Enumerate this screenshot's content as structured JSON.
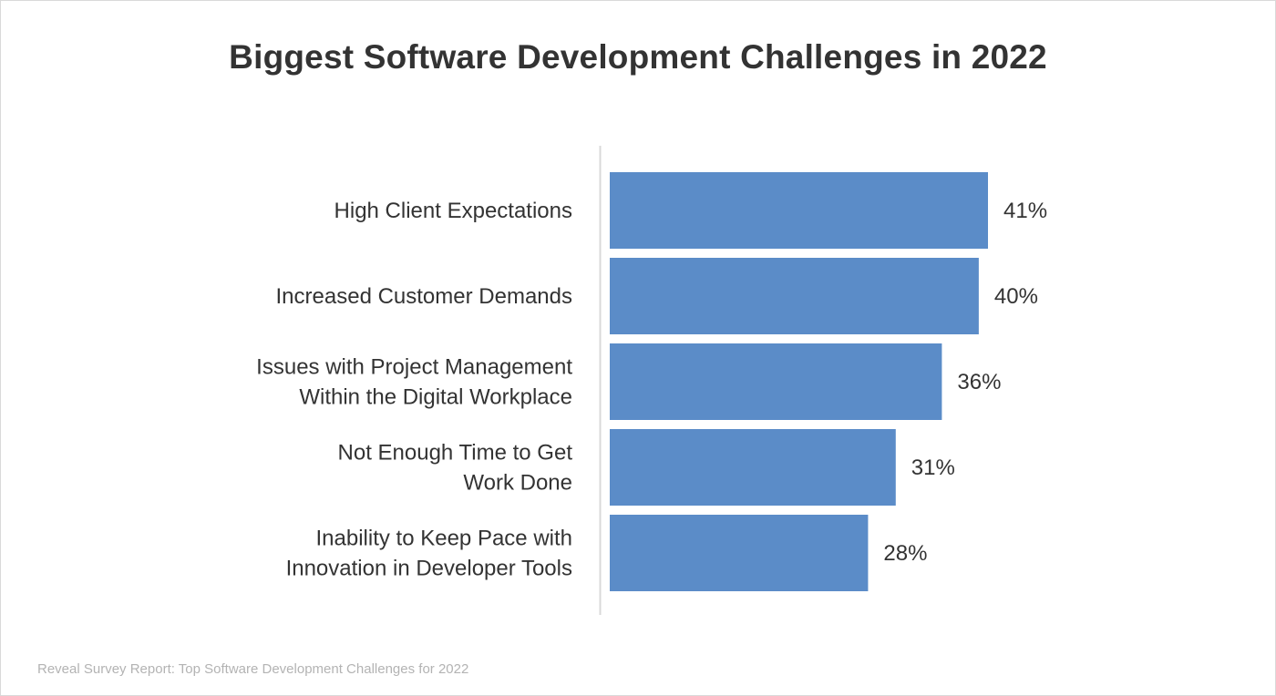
{
  "chart_data": {
    "type": "bar",
    "orientation": "horizontal",
    "title": "Biggest Software Development Challenges in 2022",
    "categories": [
      [
        "High Client Expectations"
      ],
      [
        "Increased Customer Demands"
      ],
      [
        "Issues with Project Management",
        "Within the Digital Workplace"
      ],
      [
        "Not Enough Time to Get",
        "Work Done"
      ],
      [
        "Inability to Keep Pace with",
        "Innovation in Developer Tools"
      ]
    ],
    "values": [
      41,
      40,
      36,
      31,
      28
    ],
    "value_labels": [
      "41%",
      "40%",
      "36%",
      "31%",
      "28%"
    ],
    "unit": "%",
    "xlabel": "",
    "ylabel": "",
    "xlim": [
      0,
      41
    ],
    "grid": false,
    "legend": "none",
    "bar_color": "#5b8cc8",
    "source": "Reveal Survey Report: Top Software Development Challenges for 2022"
  }
}
